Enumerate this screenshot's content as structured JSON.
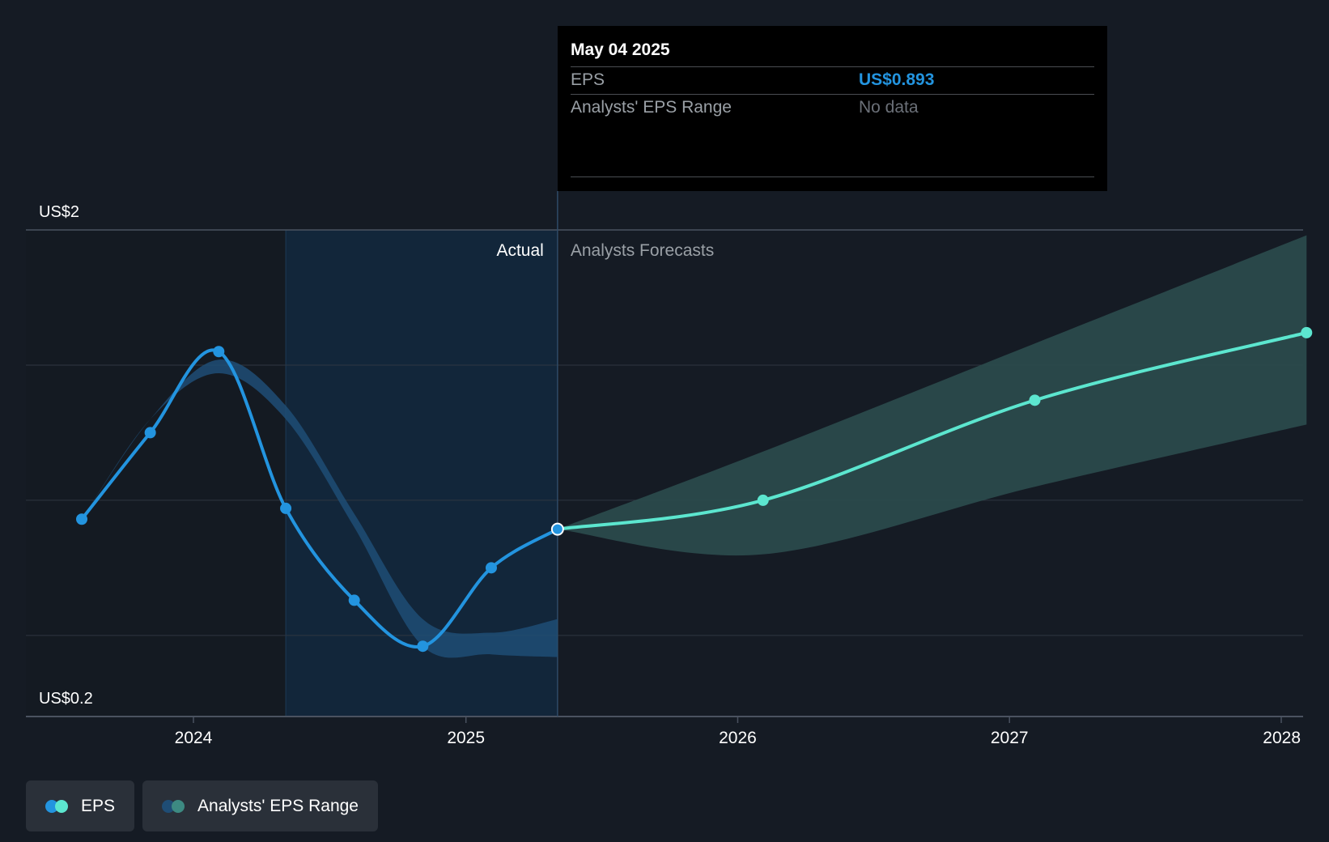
{
  "colors": {
    "background": "#151b24",
    "actual_line": "#2394df",
    "forecast_line": "#5ce6cf",
    "actual_band": "#1f4d75",
    "forecast_band": "#2b4d4e",
    "highlight_shade": "#12263a",
    "grid": "#2f3641",
    "axis": "#4a5260"
  },
  "tooltip": {
    "date": "May 04 2025",
    "eps_label": "EPS",
    "eps_value": "US$0.893",
    "range_label": "Analysts' EPS Range",
    "range_value": "No data"
  },
  "regions": {
    "actual_label": "Actual",
    "forecast_label": "Analysts Forecasts"
  },
  "legend": [
    {
      "label": "EPS",
      "icon": "eps-legend-icon",
      "color1": "#2394df",
      "color2": "#5ce6cf"
    },
    {
      "label": "Analysts' EPS Range",
      "icon": "range-legend-icon",
      "color1": "#1f4d75",
      "color2": "#3d8a82"
    }
  ],
  "chart_data": {
    "type": "line",
    "ylim": [
      0.2,
      2.0
    ],
    "y_tick_labels": [
      "US$2",
      "US$0.2"
    ],
    "y_gridlines": [
      1.5,
      1.0,
      0.5
    ],
    "x_ticks": [
      "2024",
      "2025",
      "2026",
      "2027",
      "2028"
    ],
    "grid": true,
    "divider_date": "2025-05-04",
    "highlight_start": "2024-05-04",
    "series": [
      {
        "name": "EPS",
        "kind": "actual",
        "x": [
          "2023-08-04",
          "2023-11-04",
          "2024-02-04",
          "2024-05-04",
          "2024-08-04",
          "2024-11-04",
          "2025-02-04",
          "2025-05-04"
        ],
        "y": [
          0.93,
          1.25,
          1.55,
          0.97,
          0.63,
          0.46,
          0.75,
          0.893
        ]
      },
      {
        "name": "EPS",
        "kind": "forecast",
        "x": [
          "2025-05-04",
          "2026-02-04",
          "2027-02-04",
          "2028-02-04"
        ],
        "y": [
          0.893,
          1.0,
          1.37,
          1.62
        ]
      }
    ],
    "bands": [
      {
        "name": "Analysts' EPS Range",
        "kind": "actual",
        "x": [
          "2023-08-04",
          "2023-11-04",
          "2024-02-04",
          "2024-05-04",
          "2024-08-04",
          "2024-11-04",
          "2025-02-04",
          "2025-05-04"
        ],
        "low": [
          0.93,
          1.3,
          1.47,
          1.3,
          0.9,
          0.46,
          0.43,
          0.42
        ],
        "high": [
          0.93,
          1.3,
          1.52,
          1.35,
          0.95,
          0.56,
          0.51,
          0.56
        ]
      },
      {
        "name": "Analysts' EPS Range",
        "kind": "forecast",
        "x": [
          "2025-05-04",
          "2026-02-04",
          "2027-02-04",
          "2028-02-04"
        ],
        "low": [
          0.893,
          0.8,
          1.05,
          1.28
        ],
        "high": [
          0.893,
          1.18,
          1.58,
          1.98
        ]
      }
    ]
  }
}
